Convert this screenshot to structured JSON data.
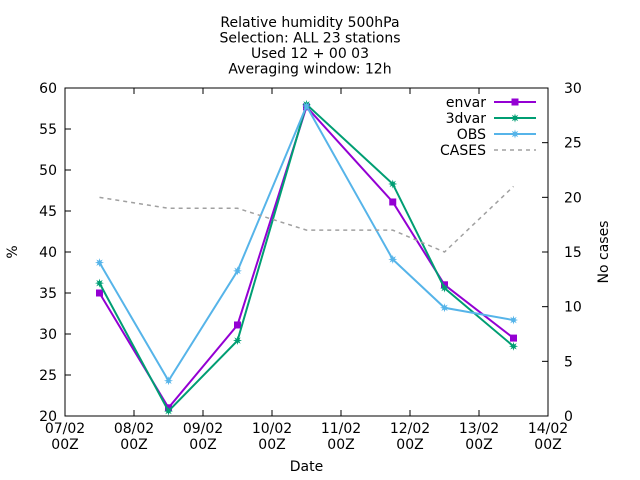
{
  "chart_data": {
    "type": "line",
    "title_lines": [
      "Relative humidity 500hPa",
      "Selection: ALL      23 stations",
      "Used 12 + 00 03",
      "Averaging window: 12h"
    ],
    "xlabel": "Date",
    "ylabel": "%",
    "y2label": "No cases",
    "x_ticks": [
      {
        "x": 0,
        "top": "07/02",
        "bottom": "00Z"
      },
      {
        "x": 1,
        "top": "08/02",
        "bottom": "00Z"
      },
      {
        "x": 2,
        "top": "09/02",
        "bottom": "00Z"
      },
      {
        "x": 3,
        "top": "10/02",
        "bottom": "00Z"
      },
      {
        "x": 4,
        "top": "11/02",
        "bottom": "00Z"
      },
      {
        "x": 5,
        "top": "12/02",
        "bottom": "00Z"
      },
      {
        "x": 6,
        "top": "13/02",
        "bottom": "00Z"
      },
      {
        "x": 7,
        "top": "14/02",
        "bottom": "00Z"
      }
    ],
    "x_range": [
      0,
      7
    ],
    "ylim": [
      20,
      60
    ],
    "y_ticks": [
      20,
      25,
      30,
      35,
      40,
      45,
      50,
      55,
      60
    ],
    "y2lim": [
      0,
      30
    ],
    "y2_ticks": [
      0,
      5,
      10,
      15,
      20,
      25,
      30
    ],
    "legend_position": "top-right",
    "grid": false,
    "series": [
      {
        "name": "envar",
        "axis": "y",
        "color": "#9400d3",
        "style": "solid",
        "marker": "square",
        "points": [
          {
            "x": 0.5,
            "y": 35.0
          },
          {
            "x": 1.5,
            "y": 21.0
          },
          {
            "x": 2.5,
            "y": 31.1
          },
          {
            "x": 3.5,
            "y": 57.7
          },
          {
            "x": 4.75,
            "y": 46.1
          },
          {
            "x": 5.5,
            "y": 36.0
          },
          {
            "x": 6.5,
            "y": 29.5
          }
        ]
      },
      {
        "name": "3dvar",
        "axis": "y",
        "color": "#009e73",
        "style": "solid",
        "marker": "star",
        "points": [
          {
            "x": 0.5,
            "y": 36.2
          },
          {
            "x": 1.5,
            "y": 20.6
          },
          {
            "x": 2.5,
            "y": 29.2
          },
          {
            "x": 3.5,
            "y": 58.0
          },
          {
            "x": 4.75,
            "y": 48.3
          },
          {
            "x": 5.5,
            "y": 35.6
          },
          {
            "x": 6.5,
            "y": 28.5
          }
        ]
      },
      {
        "name": "OBS",
        "axis": "y",
        "color": "#56b4e9",
        "style": "solid",
        "marker": "star",
        "points": [
          {
            "x": 0.5,
            "y": 38.7
          },
          {
            "x": 1.5,
            "y": 24.3
          },
          {
            "x": 2.5,
            "y": 37.7
          },
          {
            "x": 3.5,
            "y": 57.8
          },
          {
            "x": 4.75,
            "y": 39.1
          },
          {
            "x": 5.5,
            "y": 33.2
          },
          {
            "x": 6.5,
            "y": 31.7
          }
        ]
      },
      {
        "name": "CASES",
        "axis": "y2",
        "color": "#a0a0a0",
        "style": "dashed",
        "marker": "none",
        "points": [
          {
            "x": 0.5,
            "y": 20
          },
          {
            "x": 1.5,
            "y": 19
          },
          {
            "x": 2.5,
            "y": 19
          },
          {
            "x": 3.5,
            "y": 17
          },
          {
            "x": 4.75,
            "y": 17
          },
          {
            "x": 5.5,
            "y": 15
          },
          {
            "x": 6.5,
            "y": 21
          }
        ]
      }
    ]
  }
}
